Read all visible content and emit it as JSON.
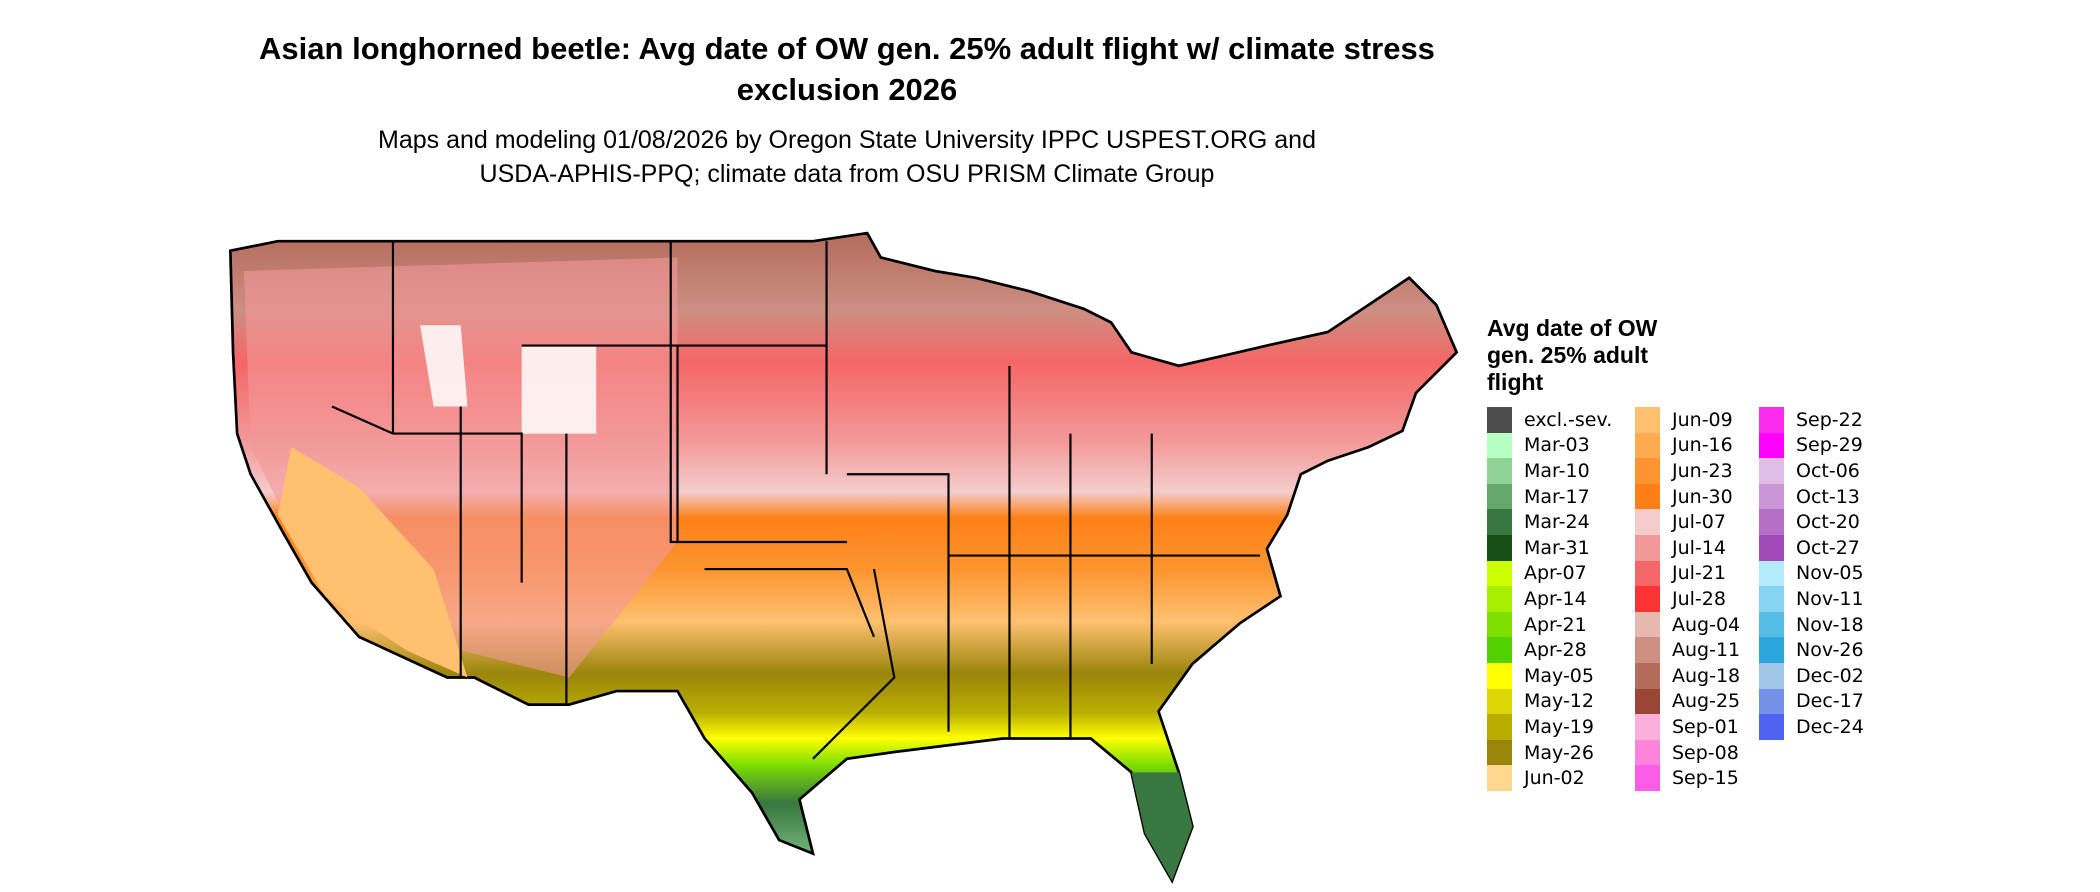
{
  "title": "Asian longhorned beetle: Avg date of OW gen. 25% adult flight w/ climate stress exclusion 2026",
  "subtitle_line1": "Maps and modeling 01/08/2026 by Oregon State University IPPC USPEST.ORG and",
  "subtitle_line2": "USDA-APHIS-PPQ; climate data from OSU PRISM Climate Group",
  "legend": {
    "title": "Avg date of OW gen. 25% adult flight",
    "items": [
      {
        "label": "excl.-sev.",
        "color": "#4d4d4d"
      },
      {
        "label": "Mar-03",
        "color": "#b8ffc4"
      },
      {
        "label": "Mar-10",
        "color": "#8fd496"
      },
      {
        "label": "Mar-17",
        "color": "#65a86b"
      },
      {
        "label": "Mar-24",
        "color": "#38773f"
      },
      {
        "label": "Mar-31",
        "color": "#164f15"
      },
      {
        "label": "Apr-07",
        "color": "#ccff00"
      },
      {
        "label": "Apr-14",
        "color": "#a6ef00"
      },
      {
        "label": "Apr-21",
        "color": "#7fe000"
      },
      {
        "label": "Apr-28",
        "color": "#52d100"
      },
      {
        "label": "May-05",
        "color": "#ffff00"
      },
      {
        "label": "May-12",
        "color": "#dcd700"
      },
      {
        "label": "May-19",
        "color": "#b9ae00"
      },
      {
        "label": "May-26",
        "color": "#9a850b"
      },
      {
        "label": "Jun-02",
        "color": "#ffd78f"
      },
      {
        "label": "Jun-09",
        "color": "#ffc070"
      },
      {
        "label": "Jun-16",
        "color": "#fdaa50"
      },
      {
        "label": "Jun-23",
        "color": "#fc9530"
      },
      {
        "label": "Jun-30",
        "color": "#fd8016"
      },
      {
        "label": "Jul-07",
        "color": "#f4cccc"
      },
      {
        "label": "Jul-14",
        "color": "#f39898"
      },
      {
        "label": "Jul-21",
        "color": "#f56666"
      },
      {
        "label": "Jul-28",
        "color": "#fc3333"
      },
      {
        "label": "Aug-04",
        "color": "#e6b8af"
      },
      {
        "label": "Aug-11",
        "color": "#cc8f82"
      },
      {
        "label": "Aug-18",
        "color": "#b36b5c"
      },
      {
        "label": "Aug-25",
        "color": "#9a4535"
      },
      {
        "label": "Sep-01",
        "color": "#fcaedc"
      },
      {
        "label": "Sep-08",
        "color": "#fc84dd"
      },
      {
        "label": "Sep-15",
        "color": "#fc5ce8"
      },
      {
        "label": "Sep-22",
        "color": "#fc2cef"
      },
      {
        "label": "Sep-29",
        "color": "#ff00ff"
      },
      {
        "label": "Oct-06",
        "color": "#e0bde6"
      },
      {
        "label": "Oct-13",
        "color": "#cb96d6"
      },
      {
        "label": "Oct-20",
        "color": "#b66fc6"
      },
      {
        "label": "Oct-27",
        "color": "#a04bb8"
      },
      {
        "label": "Nov-05",
        "color": "#b3ebfd"
      },
      {
        "label": "Nov-11",
        "color": "#87d4f2"
      },
      {
        "label": "Nov-18",
        "color": "#55bce5"
      },
      {
        "label": "Nov-26",
        "color": "#2aa6dc"
      },
      {
        "label": "Dec-02",
        "color": "#9fc5e8"
      },
      {
        "label": "Dec-17",
        "color": "#7690e8"
      },
      {
        "label": "Dec-24",
        "color": "#4f62f0"
      }
    ]
  }
}
